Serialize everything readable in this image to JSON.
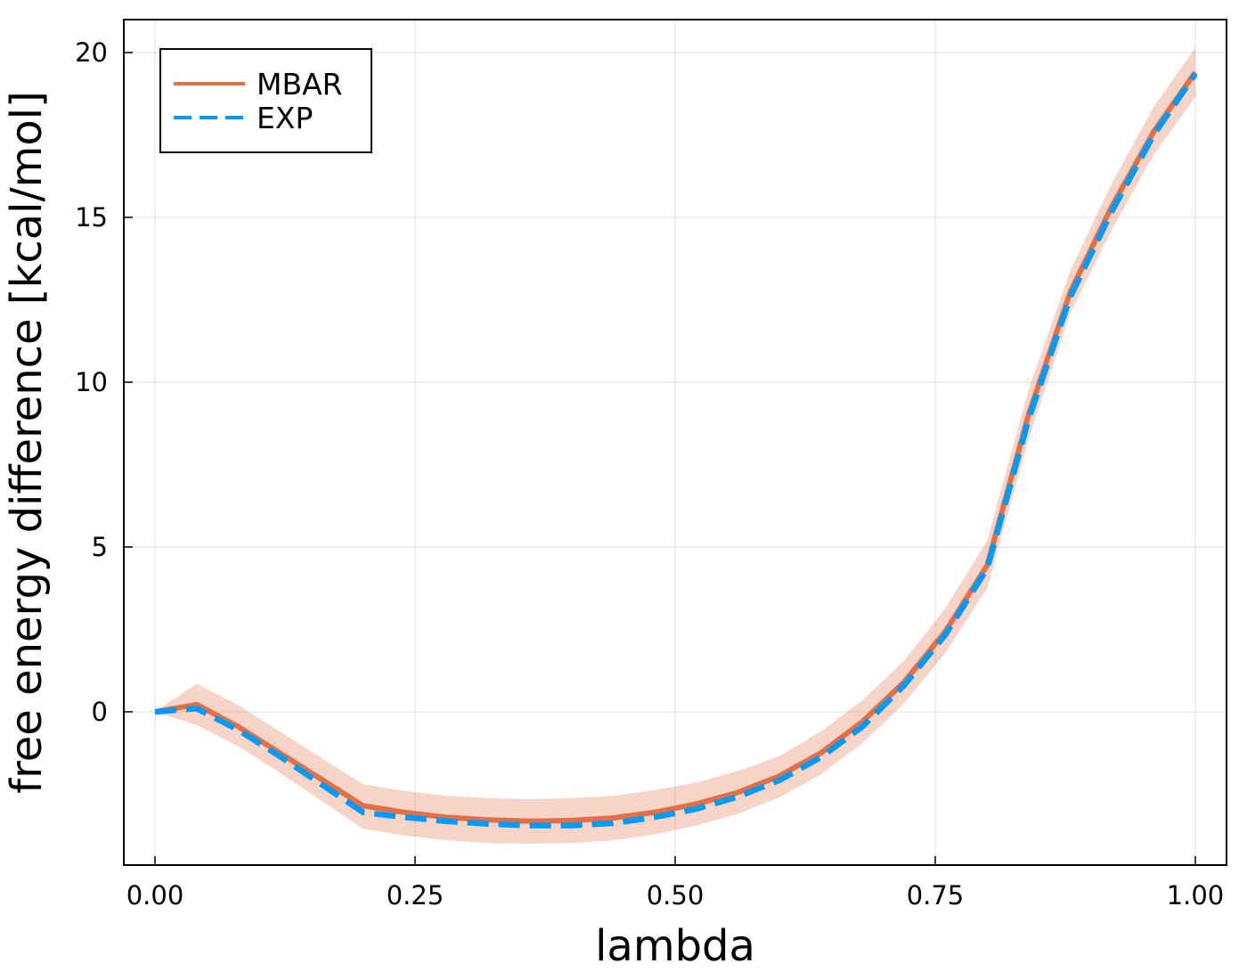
{
  "chart_data": {
    "type": "line",
    "title": "",
    "xlabel": "lambda",
    "ylabel": "free energy difference [kcal/mol]",
    "xlim": [
      -0.03,
      1.03
    ],
    "ylim": [
      -4.65,
      21.0
    ],
    "x_ticks": [
      0.0,
      0.25,
      0.5,
      0.75,
      1.0
    ],
    "x_tick_labels": [
      "0.00",
      "0.25",
      "0.50",
      "0.75",
      "1.00"
    ],
    "y_ticks": [
      0,
      5,
      10,
      15,
      20
    ],
    "y_tick_labels": [
      "0",
      "5",
      "10",
      "15",
      "20"
    ],
    "grid": true,
    "legend_position": "top-left",
    "x": [
      0.0,
      0.04,
      0.08,
      0.12,
      0.16,
      0.2,
      0.24,
      0.28,
      0.32,
      0.36,
      0.4,
      0.44,
      0.48,
      0.52,
      0.56,
      0.6,
      0.64,
      0.68,
      0.72,
      0.76,
      0.8,
      0.84,
      0.88,
      0.92,
      0.96,
      1.0
    ],
    "series": [
      {
        "name": "MBAR",
        "color": "#e26f46",
        "style": "solid",
        "values": [
          0.0,
          0.22,
          -0.45,
          -1.25,
          -2.05,
          -2.85,
          -3.05,
          -3.2,
          -3.28,
          -3.32,
          -3.3,
          -3.22,
          -3.05,
          -2.8,
          -2.45,
          -1.95,
          -1.25,
          -0.3,
          0.9,
          2.45,
          4.45,
          9.05,
          12.75,
          15.35,
          17.6,
          19.4
        ],
        "band_upper": [
          0.0,
          0.85,
          0.2,
          -0.6,
          -1.4,
          -2.2,
          -2.4,
          -2.55,
          -2.62,
          -2.65,
          -2.62,
          -2.55,
          -2.38,
          -2.15,
          -1.8,
          -1.35,
          -0.6,
          0.35,
          1.55,
          3.15,
          5.2,
          9.8,
          13.4,
          16.05,
          18.35,
          20.15
        ],
        "band_lower": [
          0.0,
          -0.4,
          -1.05,
          -1.85,
          -2.7,
          -3.55,
          -3.75,
          -3.9,
          -3.98,
          -4.0,
          -3.98,
          -3.9,
          -3.72,
          -3.45,
          -3.1,
          -2.6,
          -1.9,
          -0.95,
          0.25,
          1.8,
          3.75,
          8.3,
          12.1,
          14.65,
          16.9,
          18.65
        ]
      },
      {
        "name": "EXP",
        "color": "#009af9",
        "style": "dashed",
        "values": [
          0.0,
          0.1,
          -0.55,
          -1.35,
          -2.2,
          -3.05,
          -3.2,
          -3.32,
          -3.4,
          -3.45,
          -3.45,
          -3.38,
          -3.2,
          -2.95,
          -2.58,
          -2.08,
          -1.38,
          -0.45,
          0.8,
          2.35,
          4.35,
          8.9,
          12.6,
          15.2,
          17.5,
          19.35
        ]
      }
    ]
  }
}
